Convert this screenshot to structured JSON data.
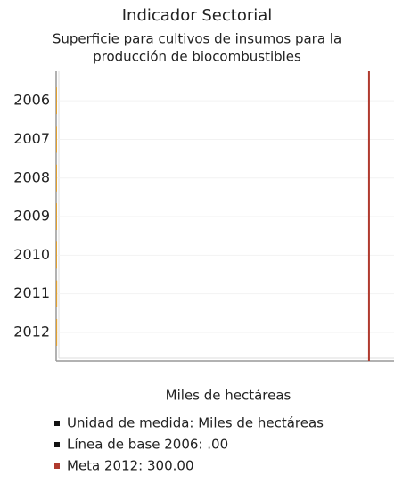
{
  "chart_data": {
    "type": "bar",
    "orientation": "horizontal",
    "title": "Indicador Sectorial",
    "subtitle": [
      "Superficie para cultivos de insumos para la",
      "producción de biocombustibles"
    ],
    "categories": [
      "2006",
      "2007",
      "2008",
      "2009",
      "2010",
      "2011",
      "2012"
    ],
    "values": [
      0,
      0,
      0,
      0,
      0,
      1,
      1
    ],
    "color": "#e0a030",
    "xlim": [
      0,
      324
    ],
    "target": 300,
    "target_color": "#b03a2e",
    "x_label": "Miles de hectáreas",
    "legend": [
      {
        "label": "Unidad de medida: Miles de hectáreas",
        "color": "#111111"
      },
      {
        "label": "Línea de base 2006: .00",
        "color": "#111111"
      },
      {
        "label": "Meta 2012: 300.00",
        "color": "#b03a2e"
      }
    ]
  }
}
